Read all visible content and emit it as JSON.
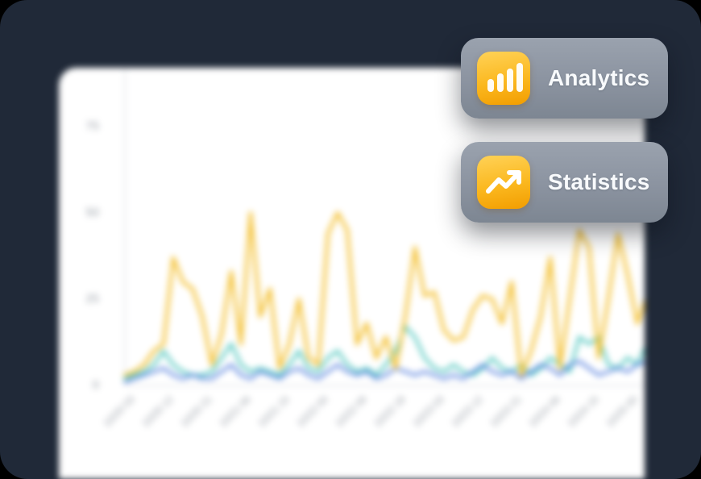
{
  "scene": {
    "background_color": "#000000",
    "frame_color": "#202938",
    "panel_color": "#ffffff"
  },
  "badges": [
    {
      "label": "Analytics",
      "icon": "bar-chart-icon",
      "icon_color_top": "#ffd257",
      "icon_color_bottom": "#f29d00"
    },
    {
      "label": "Statistics",
      "icon": "trend-up-icon",
      "icon_color_top": "#ffd257",
      "icon_color_bottom": "#f29d00"
    }
  ],
  "colors": {
    "axis_line": "#e5e7eb",
    "tick_text": "#9aa0a8",
    "badge_gray_top": "#9aa2ae",
    "badge_gray_bottom": "#7d8692"
  },
  "chart_data": {
    "type": "line",
    "title": "",
    "xlabel": "",
    "ylabel": "",
    "grid": false,
    "legend": "none",
    "ylim": [
      0,
      80
    ],
    "y_tick_labels": [
      "75",
      "50",
      "25",
      "0"
    ],
    "y_tick_values": [
      75,
      50,
      25,
      0
    ],
    "x_tick_labels": [
      "10/20 03",
      "10/20 12",
      "10/20 21",
      "10/21 06",
      "10/21 15",
      "10/22 00",
      "10/22 09",
      "10/22 18",
      "10/23 03",
      "10/23 12",
      "10/23 21",
      "10/24 06",
      "10/24 15",
      "10/25 00"
    ],
    "series": [
      {
        "name": "teal-series",
        "color": "#55c8c0",
        "stroke_width": 3.5,
        "values": [
          2,
          3,
          4,
          6,
          10,
          6,
          4,
          3,
          3,
          4,
          8,
          12,
          6,
          4,
          5,
          4,
          3,
          6,
          10,
          5,
          4,
          8,
          10,
          6,
          4,
          5,
          3,
          6,
          10,
          17,
          14,
          8,
          5,
          4,
          6,
          4,
          3,
          5,
          8,
          5,
          4,
          6,
          3,
          5,
          8,
          6,
          4,
          14,
          12,
          14,
          6,
          5,
          8,
          6,
          12,
          15
        ]
      },
      {
        "name": "blue-series",
        "color": "#4d79dc",
        "stroke_width": 3,
        "values": [
          1,
          2,
          3,
          4,
          5,
          3,
          2,
          3,
          2,
          2,
          4,
          6,
          3,
          2,
          4,
          3,
          2,
          4,
          5,
          3,
          2,
          4,
          6,
          4,
          3,
          4,
          2,
          3,
          5,
          4,
          3,
          4,
          3,
          2,
          3,
          2,
          4,
          6,
          4,
          3,
          4,
          2,
          4,
          6,
          5,
          3,
          6,
          7,
          5,
          3,
          4,
          5,
          4,
          6,
          7,
          5
        ]
      },
      {
        "name": "amber-series",
        "color": "#f4c238",
        "stroke_width": 4,
        "values": [
          3,
          4,
          6,
          10,
          12,
          37,
          30,
          28,
          20,
          6,
          15,
          33,
          12,
          50,
          20,
          28,
          5,
          12,
          25,
          8,
          6,
          44,
          50,
          45,
          12,
          18,
          8,
          14,
          5,
          20,
          40,
          26,
          27,
          16,
          13,
          14,
          22,
          26,
          25,
          18,
          30,
          3,
          10,
          20,
          37,
          5,
          25,
          45,
          40,
          8,
          25,
          44,
          32,
          18,
          26,
          30
        ]
      }
    ]
  }
}
